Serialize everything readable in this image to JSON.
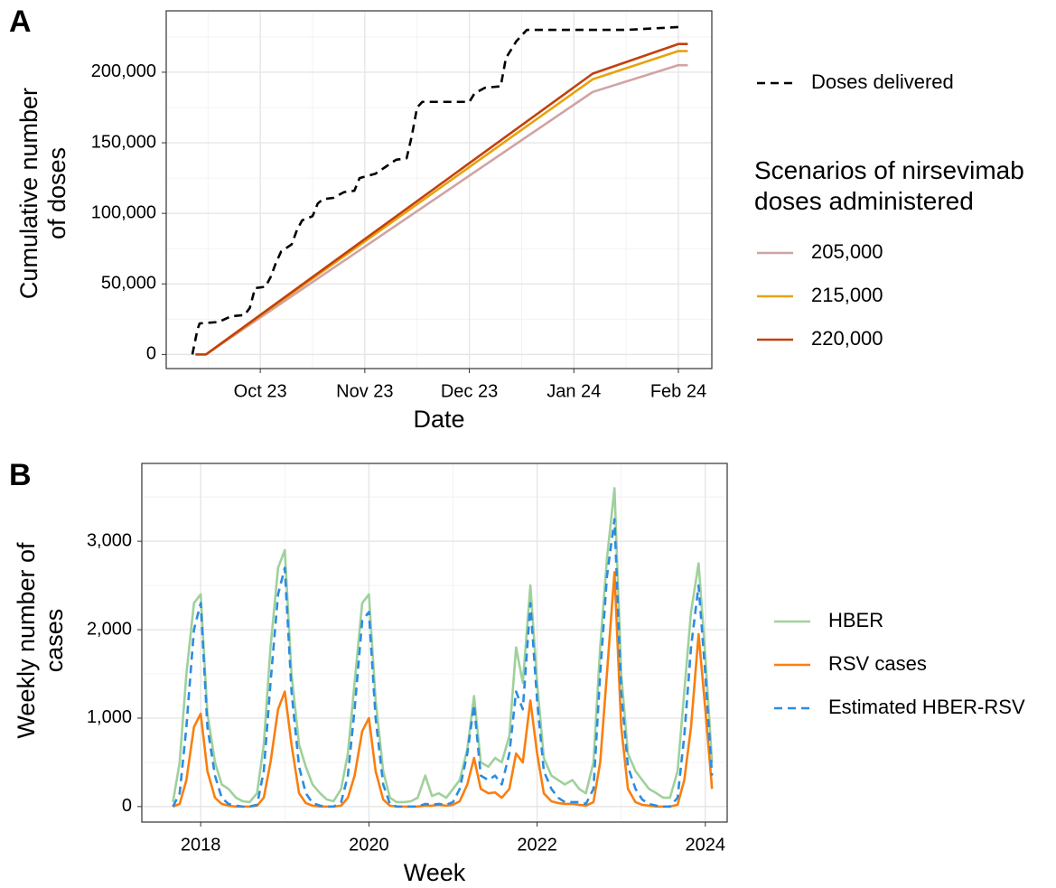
{
  "chart_data": [
    {
      "type": "line",
      "panel_label": "A",
      "xlabel": "Date",
      "ylabel": "Cumulative number of doses",
      "legend_title": "Scenarios of nirsevimab doses administered",
      "legend": "right",
      "grid": true,
      "xlim": [
        9.1,
        14.32
      ],
      "xticks": [
        {
          "value": 10,
          "label": "Oct 23"
        },
        {
          "value": 11,
          "label": "Nov 23"
        },
        {
          "value": 12,
          "label": "Dec 23"
        },
        {
          "value": 13,
          "label": "Jan 24"
        },
        {
          "value": 14,
          "label": "Feb 24"
        }
      ],
      "ylim": [
        -10000,
        243500
      ],
      "yticks": [
        0,
        {
          "value": 50000,
          "label": "50,000"
        },
        {
          "value": 100000,
          "label": "100,000"
        },
        {
          "value": 150000,
          "label": "150,000"
        },
        {
          "value": 200000,
          "label": "200,000"
        }
      ],
      "series": [
        {
          "name": "Doses delivered",
          "color": "#000000",
          "dash": true,
          "x": [
            9.35,
            9.4,
            9.42,
            9.6,
            9.72,
            9.85,
            9.9,
            9.95,
            10.05,
            10.1,
            10.15,
            10.2,
            10.3,
            10.35,
            10.4,
            10.5,
            10.55,
            10.6,
            10.7,
            10.8,
            10.9,
            10.95,
            11.1,
            11.2,
            11.3,
            11.4,
            11.45,
            11.5,
            11.55,
            12.0,
            12.05,
            12.15,
            12.3,
            12.35,
            12.45,
            12.55,
            13.5,
            14.0
          ],
          "values": [
            0,
            18000,
            22000,
            23000,
            27000,
            28000,
            33000,
            47000,
            48000,
            55000,
            65000,
            73000,
            78000,
            88000,
            95000,
            98000,
            107000,
            110000,
            111000,
            115000,
            116000,
            125000,
            128000,
            133000,
            138000,
            139000,
            155000,
            175000,
            179000,
            179000,
            185000,
            189000,
            190000,
            210000,
            222000,
            230000,
            230000,
            232000
          ]
        },
        {
          "name": "205,000",
          "color": "#d1a3a4",
          "dash": false,
          "x": [
            9.38,
            9.48,
            13.18,
            14.0,
            14.09
          ],
          "values": [
            0,
            0,
            186000,
            205000,
            205000
          ]
        },
        {
          "name": "215,000",
          "color": "#e8a20c",
          "dash": false,
          "x": [
            9.38,
            9.48,
            13.18,
            14.0,
            14.09
          ],
          "values": [
            0,
            0,
            195000,
            215000,
            215000
          ]
        },
        {
          "name": "220,000",
          "color": "#c2410c",
          "dash": false,
          "x": [
            9.38,
            9.48,
            13.18,
            14.0,
            14.09
          ],
          "values": [
            0,
            0,
            199000,
            220000,
            220000
          ]
        }
      ]
    },
    {
      "type": "line",
      "panel_label": "B",
      "xlabel": "Week",
      "ylabel": "Weekly number of cases",
      "legend": "right",
      "grid": true,
      "xlim": [
        2017.3,
        2024.26
      ],
      "xticks": [
        2018,
        2020,
        2022,
        2024
      ],
      "ylim": [
        -175,
        3880
      ],
      "yticks": [
        0,
        {
          "value": 1000,
          "label": "1,000"
        },
        {
          "value": 2000,
          "label": "2,000"
        },
        {
          "value": 3000,
          "label": "3,000"
        }
      ],
      "x": [
        2017.67,
        2017.75,
        2017.83,
        2017.92,
        2018.0,
        2018.08,
        2018.17,
        2018.25,
        2018.33,
        2018.42,
        2018.5,
        2018.58,
        2018.67,
        2018.75,
        2018.83,
        2018.92,
        2019.0,
        2019.08,
        2019.17,
        2019.25,
        2019.33,
        2019.42,
        2019.5,
        2019.58,
        2019.67,
        2019.75,
        2019.83,
        2019.92,
        2020.0,
        2020.08,
        2020.17,
        2020.25,
        2020.33,
        2020.42,
        2020.5,
        2020.58,
        2020.67,
        2020.75,
        2020.83,
        2020.92,
        2021.0,
        2021.08,
        2021.17,
        2021.25,
        2021.33,
        2021.42,
        2021.5,
        2021.58,
        2021.67,
        2021.75,
        2021.83,
        2021.92,
        2022.0,
        2022.08,
        2022.17,
        2022.25,
        2022.33,
        2022.42,
        2022.5,
        2022.58,
        2022.67,
        2022.75,
        2022.83,
        2022.92,
        2023.0,
        2023.08,
        2023.17,
        2023.25,
        2023.33,
        2023.42,
        2023.5,
        2023.58,
        2023.67,
        2023.75,
        2023.83,
        2023.92,
        2024.0,
        2024.08
      ],
      "series": [
        {
          "name": "HBER",
          "color": "#9fd19b",
          "dash": false,
          "values": [
            50,
            500,
            1500,
            2300,
            2400,
            1050,
            500,
            250,
            200,
            100,
            60,
            50,
            150,
            700,
            1800,
            2700,
            2900,
            1500,
            700,
            450,
            250,
            150,
            80,
            60,
            200,
            600,
            1400,
            2300,
            2400,
            1200,
            400,
            100,
            50,
            50,
            60,
            100,
            350,
            120,
            150,
            100,
            200,
            300,
            650,
            1250,
            500,
            450,
            550,
            500,
            800,
            1800,
            1400,
            2500,
            1400,
            550,
            350,
            300,
            250,
            300,
            200,
            150,
            500,
            1800,
            2800,
            3600,
            1500,
            600,
            400,
            300,
            200,
            150,
            100,
            100,
            400,
            1300,
            2200,
            2750,
            1700,
            500
          ]
        },
        {
          "name": "RSV cases",
          "color": "#f97f0f",
          "dash": false,
          "values": [
            0,
            30,
            300,
            900,
            1050,
            400,
            100,
            30,
            10,
            0,
            0,
            0,
            10,
            100,
            500,
            1100,
            1300,
            700,
            150,
            40,
            10,
            0,
            0,
            0,
            10,
            100,
            350,
            850,
            1000,
            400,
            80,
            10,
            0,
            0,
            0,
            0,
            10,
            10,
            20,
            10,
            20,
            60,
            250,
            550,
            200,
            150,
            160,
            100,
            200,
            600,
            500,
            1200,
            600,
            150,
            60,
            40,
            30,
            30,
            20,
            10,
            50,
            500,
            1500,
            2650,
            900,
            200,
            50,
            20,
            10,
            0,
            0,
            0,
            20,
            300,
            900,
            1950,
            1100,
            200
          ]
        },
        {
          "name": "Estimated HBER-RSV",
          "color": "#2b8ce0",
          "dash": true,
          "values": [
            0,
            150,
            900,
            2000,
            2300,
            900,
            350,
            100,
            30,
            10,
            0,
            0,
            20,
            400,
            1400,
            2400,
            2700,
            1300,
            450,
            150,
            40,
            10,
            0,
            0,
            50,
            350,
            1100,
            2100,
            2200,
            1000,
            250,
            30,
            0,
            0,
            0,
            0,
            30,
            20,
            30,
            20,
            50,
            200,
            600,
            1150,
            350,
            300,
            350,
            250,
            600,
            1300,
            1100,
            2300,
            1200,
            400,
            200,
            100,
            50,
            50,
            50,
            30,
            200,
            1500,
            2600,
            3250,
            1300,
            450,
            200,
            80,
            30,
            10,
            0,
            0,
            100,
            800,
            1800,
            2500,
            1500,
            350
          ]
        }
      ]
    }
  ]
}
